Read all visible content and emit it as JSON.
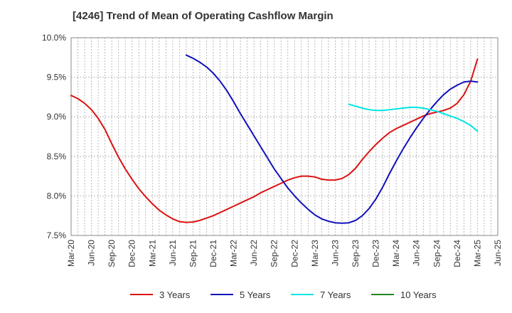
{
  "chart_data": {
    "type": "line",
    "title": "[4246]  Trend of Mean of Operating Cashflow Margin",
    "xlabel": "",
    "ylabel": "",
    "x_ticks": [
      "Mar-20",
      "Jun-20",
      "Sep-20",
      "Dec-20",
      "Mar-21",
      "Jun-21",
      "Sep-21",
      "Dec-21",
      "Mar-22",
      "Jun-22",
      "Sep-22",
      "Dec-22",
      "Mar-23",
      "Jun-23",
      "Sep-23",
      "Dec-23",
      "Mar-24",
      "Jun-24",
      "Sep-24",
      "Dec-24",
      "Mar-25",
      "Jun-25"
    ],
    "y_ticks": [
      "7.5%",
      "8.0%",
      "8.5%",
      "9.0%",
      "9.5%",
      "10.0%"
    ],
    "y_tick_values": [
      7.5,
      8.0,
      8.5,
      9.0,
      9.5,
      10.0
    ],
    "ylim": [
      7.5,
      10.0
    ],
    "grid": true,
    "legend_position": "bottom",
    "series": [
      {
        "name": "3 Years",
        "color": "#dd1111",
        "x": [
          "Mar-20",
          "Apr-20",
          "May-20",
          "Jun-20",
          "Jul-20",
          "Aug-20",
          "Sep-20",
          "Oct-20",
          "Nov-20",
          "Dec-20",
          "Jan-21",
          "Feb-21",
          "Mar-21",
          "Apr-21",
          "May-21",
          "Jun-21",
          "Jul-21",
          "Aug-21",
          "Sep-21",
          "Oct-21",
          "Nov-21",
          "Dec-21",
          "Jan-22",
          "Feb-22",
          "Mar-22",
          "Apr-22",
          "May-22",
          "Jun-22",
          "Jul-22",
          "Aug-22",
          "Sep-22",
          "Oct-22",
          "Nov-22",
          "Dec-22",
          "Jan-23",
          "Feb-23",
          "Mar-23",
          "Apr-23",
          "May-23",
          "Jun-23",
          "Jul-23",
          "Aug-23",
          "Sep-23",
          "Oct-23",
          "Nov-23",
          "Dec-23",
          "Jan-24",
          "Feb-24",
          "Mar-24",
          "Apr-24",
          "May-24",
          "Jun-24",
          "Jul-24",
          "Aug-24",
          "Sep-24",
          "Oct-24",
          "Nov-24",
          "Dec-24",
          "Jan-25",
          "Feb-25",
          "Mar-25"
        ],
        "values": [
          9.27,
          9.23,
          9.17,
          9.09,
          8.98,
          8.84,
          8.66,
          8.49,
          8.34,
          8.21,
          8.09,
          7.99,
          7.9,
          7.82,
          7.76,
          7.71,
          7.675,
          7.665,
          7.67,
          7.69,
          7.72,
          7.75,
          7.79,
          7.83,
          7.87,
          7.91,
          7.95,
          7.99,
          8.04,
          8.08,
          8.12,
          8.16,
          8.2,
          8.23,
          8.25,
          8.25,
          8.24,
          8.21,
          8.2,
          8.2,
          8.22,
          8.27,
          8.35,
          8.46,
          8.56,
          8.65,
          8.73,
          8.8,
          8.85,
          8.89,
          8.93,
          8.97,
          9.01,
          9.04,
          9.06,
          9.08,
          9.11,
          9.17,
          9.28,
          9.45,
          9.73
        ]
      },
      {
        "name": "5 Years",
        "color": "#1111bb",
        "x": [
          "Aug-21",
          "Sep-21",
          "Oct-21",
          "Nov-21",
          "Dec-21",
          "Jan-22",
          "Feb-22",
          "Mar-22",
          "Apr-22",
          "May-22",
          "Jun-22",
          "Jul-22",
          "Aug-22",
          "Sep-22",
          "Oct-22",
          "Nov-22",
          "Dec-22",
          "Jan-23",
          "Feb-23",
          "Mar-23",
          "Apr-23",
          "May-23",
          "Jun-23",
          "Jul-23",
          "Aug-23",
          "Sep-23",
          "Oct-23",
          "Nov-23",
          "Dec-23",
          "Jan-24",
          "Feb-24",
          "Mar-24",
          "Apr-24",
          "May-24",
          "Jun-24",
          "Jul-24",
          "Aug-24",
          "Sep-24",
          "Oct-24",
          "Nov-24",
          "Dec-24",
          "Jan-25",
          "Feb-25",
          "Mar-25"
        ],
        "values": [
          9.78,
          9.74,
          9.69,
          9.63,
          9.55,
          9.45,
          9.33,
          9.19,
          9.04,
          8.9,
          8.76,
          8.62,
          8.48,
          8.34,
          8.22,
          8.1,
          8.0,
          7.91,
          7.83,
          7.76,
          7.71,
          7.68,
          7.66,
          7.655,
          7.66,
          7.69,
          7.75,
          7.84,
          7.96,
          8.11,
          8.28,
          8.44,
          8.59,
          8.73,
          8.86,
          8.98,
          9.09,
          9.19,
          9.28,
          9.35,
          9.4,
          9.44,
          9.45,
          9.44
        ]
      },
      {
        "name": "7 Years",
        "color": "#00e5e5",
        "x": [
          "Aug-23",
          "Sep-23",
          "Oct-23",
          "Nov-23",
          "Dec-23",
          "Jan-24",
          "Feb-24",
          "Mar-24",
          "Apr-24",
          "May-24",
          "Jun-24",
          "Jul-24",
          "Aug-24",
          "Sep-24",
          "Oct-24",
          "Nov-24",
          "Dec-24",
          "Jan-25",
          "Feb-25",
          "Mar-25"
        ],
        "values": [
          9.16,
          9.135,
          9.11,
          9.09,
          9.08,
          9.08,
          9.09,
          9.1,
          9.11,
          9.12,
          9.12,
          9.11,
          9.09,
          9.07,
          9.04,
          9.01,
          8.98,
          8.94,
          8.89,
          8.82
        ]
      },
      {
        "name": "10 Years",
        "color": "#228822",
        "x": [],
        "values": []
      }
    ]
  }
}
